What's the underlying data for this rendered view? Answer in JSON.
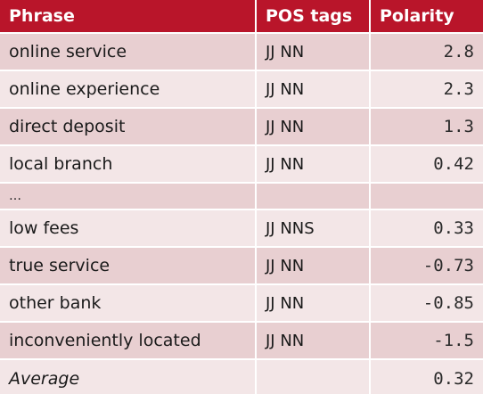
{
  "table": {
    "headers": [
      "Phrase",
      "POS tags",
      "Polarity"
    ],
    "rows": [
      {
        "phrase": "online service",
        "pos": "JJ NN",
        "polarity": "2.8"
      },
      {
        "phrase": "online experience",
        "pos": "JJ NN",
        "polarity": "2.3"
      },
      {
        "phrase": "direct deposit",
        "pos": "JJ NN",
        "polarity": "1.3"
      },
      {
        "phrase": "local branch",
        "pos": "JJ NN",
        "polarity": "0.42"
      },
      {
        "phrase": "…",
        "pos": "",
        "polarity": ""
      },
      {
        "phrase": "low fees",
        "pos": "JJ NNS",
        "polarity": "0.33"
      },
      {
        "phrase": "true service",
        "pos": "JJ NN",
        "polarity": "-0.73"
      },
      {
        "phrase": "other bank",
        "pos": "JJ NN",
        "polarity": "-0.85"
      },
      {
        "phrase": "inconveniently located",
        "pos": "JJ NN",
        "polarity": "-1.5"
      }
    ],
    "average": {
      "label": "Average",
      "pos": "",
      "polarity": "0.32"
    }
  },
  "colors": {
    "header_bg": "#b9152a",
    "row_dark": "#e8cfd1",
    "row_light": "#f3e6e7"
  }
}
